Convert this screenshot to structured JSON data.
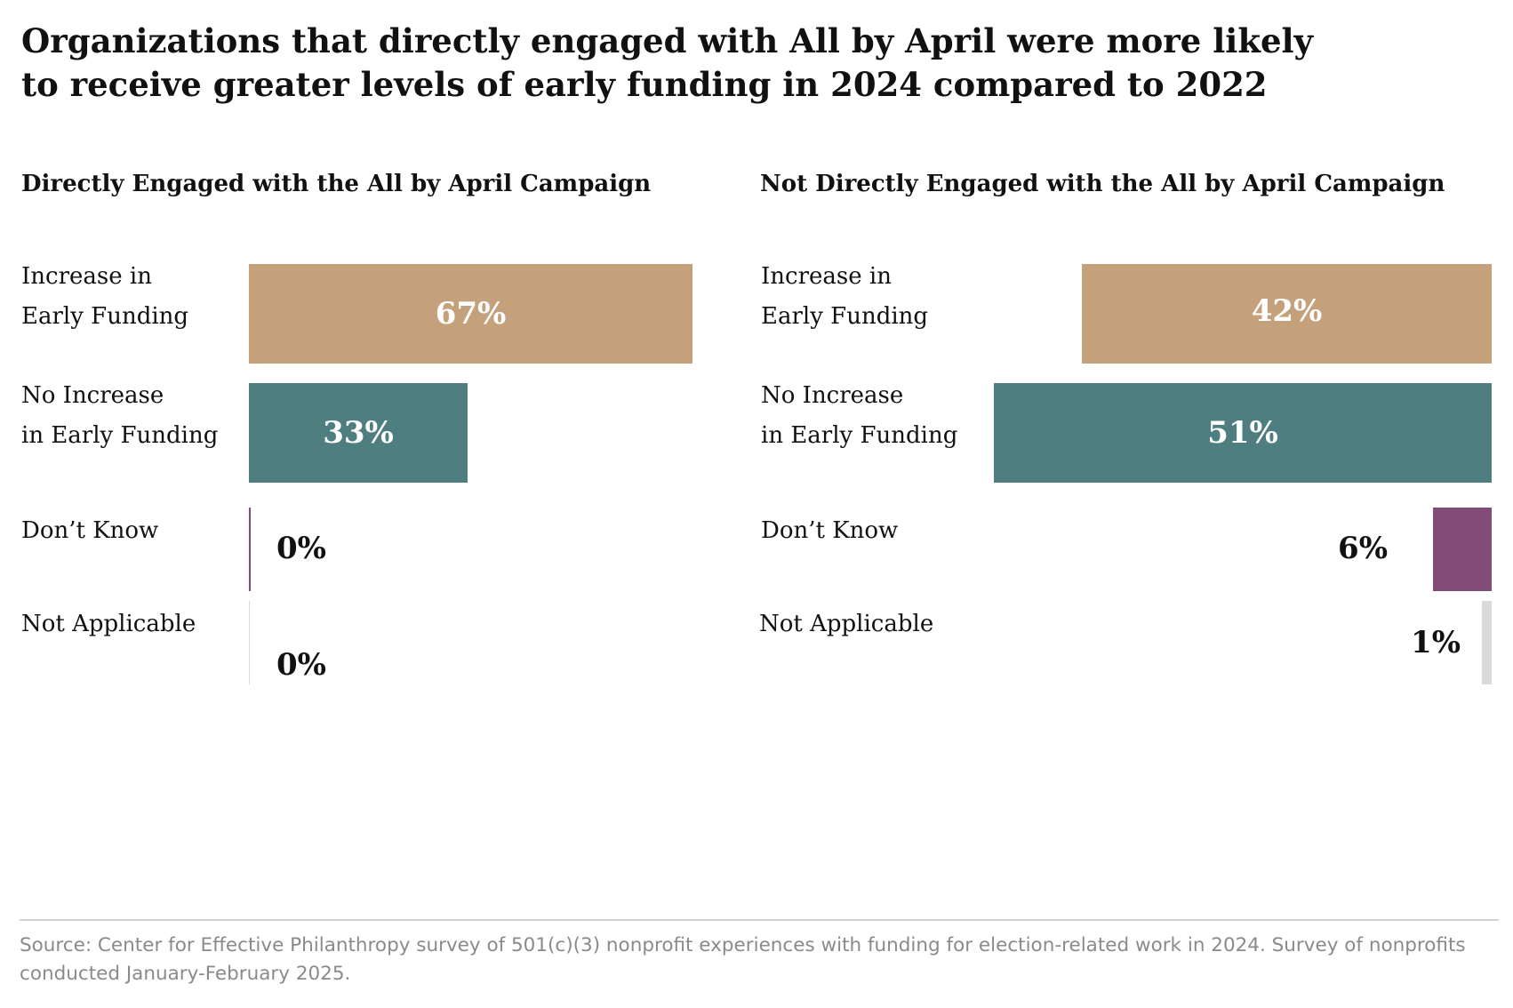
{
  "title_lines": [
    "Organizations that directly engaged with All by April were more likely",
    "to receive greater levels of early funding in 2024 compared to 2022"
  ],
  "source": "Source: Center for Effective Philanthropy survey of 501(c)(3) nonprofit experiences with funding for election-related work in 2024. Survey of nonprofits conducted January-February 2025.",
  "colors": {
    "increase": "#c4a17a",
    "no_increase": "#4f7e80",
    "dont_know": "#834c78",
    "not_applicable": "#dadada"
  },
  "chart_data": [
    {
      "type": "bar",
      "orientation": "horizontal",
      "direction": "left-to-right",
      "title": "Directly Engaged with the All by April Campaign",
      "categories": [
        [
          "Increase in",
          "Early Funding"
        ],
        [
          "No Increase",
          "in Early Funding"
        ],
        [
          "Don’t Know"
        ],
        [
          "Not Applicable"
        ]
      ],
      "values": [
        67,
        33,
        0,
        0
      ],
      "value_labels": [
        "67%",
        "33%",
        "0%",
        "0%"
      ],
      "xlim": [
        0,
        67
      ],
      "unit": "%"
    },
    {
      "type": "bar",
      "orientation": "horizontal",
      "direction": "right-to-left",
      "title": "Not Directly Engaged with the All by April Campaign",
      "categories": [
        [
          "Increase in",
          "Early Funding"
        ],
        [
          "No Increase",
          "in Early Funding"
        ],
        [
          "Don’t Know"
        ],
        [
          "Not Applicable"
        ]
      ],
      "values": [
        42,
        51,
        6,
        1
      ],
      "value_labels": [
        "42%",
        "51%",
        "6%",
        "1%"
      ],
      "xlim": [
        0,
        51
      ],
      "unit": "%"
    }
  ]
}
